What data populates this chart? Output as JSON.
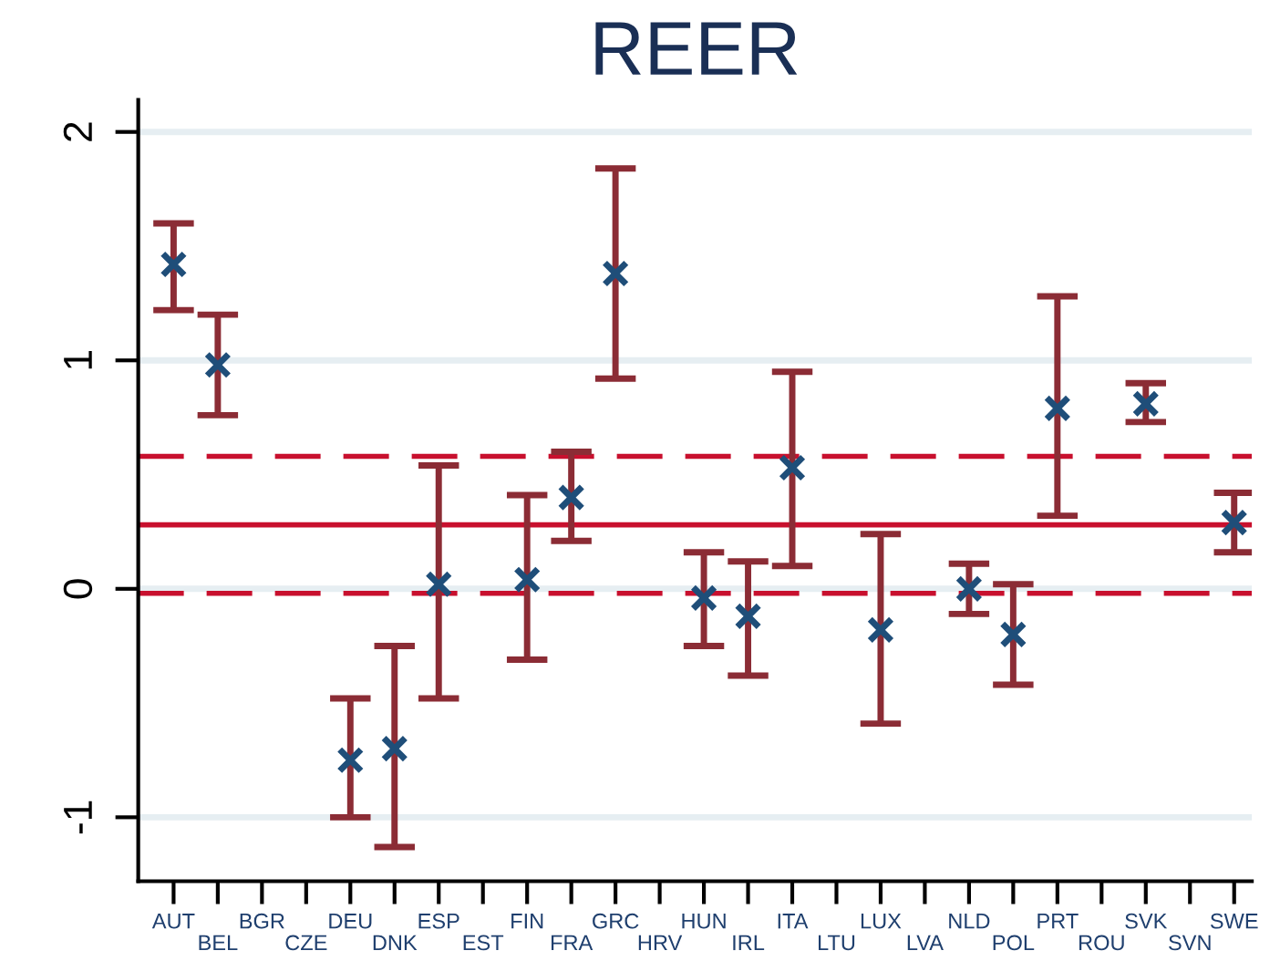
{
  "chart_data": {
    "type": "scatter",
    "title": "REER",
    "categories": [
      "AUT",
      "BEL",
      "BGR",
      "CZE",
      "DEU",
      "DNK",
      "ESP",
      "EST",
      "FIN",
      "FRA",
      "GRC",
      "HRV",
      "HUN",
      "IRL",
      "ITA",
      "LTU",
      "LUX",
      "LVA",
      "NLD",
      "POL",
      "PRT",
      "ROU",
      "SVK",
      "SVN",
      "SWE"
    ],
    "series": [
      {
        "color": "#1f4e79",
        "values": [
          1.42,
          0.98,
          null,
          null,
          -0.75,
          -0.7,
          0.02,
          null,
          0.04,
          0.4,
          1.38,
          null,
          -0.04,
          -0.12,
          0.53,
          null,
          -0.18,
          null,
          0.0,
          -0.2,
          0.79,
          null,
          0.81,
          null,
          0.29
        ],
        "errors": [
          [
            1.22,
            1.6
          ],
          [
            0.76,
            1.2
          ],
          null,
          null,
          [
            -1.0,
            -0.48
          ],
          [
            -1.13,
            -0.25
          ],
          [
            -0.48,
            0.54
          ],
          null,
          [
            -0.31,
            0.41
          ],
          [
            0.21,
            0.6
          ],
          [
            0.92,
            1.84
          ],
          null,
          [
            -0.25,
            0.16
          ],
          [
            -0.38,
            0.12
          ],
          [
            0.1,
            0.95
          ],
          null,
          [
            -0.59,
            0.24
          ],
          null,
          [
            -0.11,
            0.11
          ],
          [
            -0.42,
            0.02
          ],
          [
            0.32,
            1.28
          ],
          null,
          [
            0.73,
            0.9
          ],
          null,
          [
            0.16,
            0.42
          ]
        ]
      }
    ],
    "ylim": [
      -1.28,
      2.14
    ],
    "yticks": [
      {
        "value": -1,
        "label": "-1"
      },
      0,
      1,
      2
    ],
    "ref_lines": [
      {
        "axis": "y",
        "value": 0.28,
        "color": "#c8102e",
        "line_style": "solid"
      },
      {
        "axis": "y",
        "value": 0.58,
        "color": "#c8102e",
        "line_style": "dashed"
      },
      {
        "axis": "y",
        "value": -0.02,
        "color": "#c8102e",
        "line_style": "dashed"
      }
    ],
    "grid": "y",
    "marker": "cross"
  }
}
